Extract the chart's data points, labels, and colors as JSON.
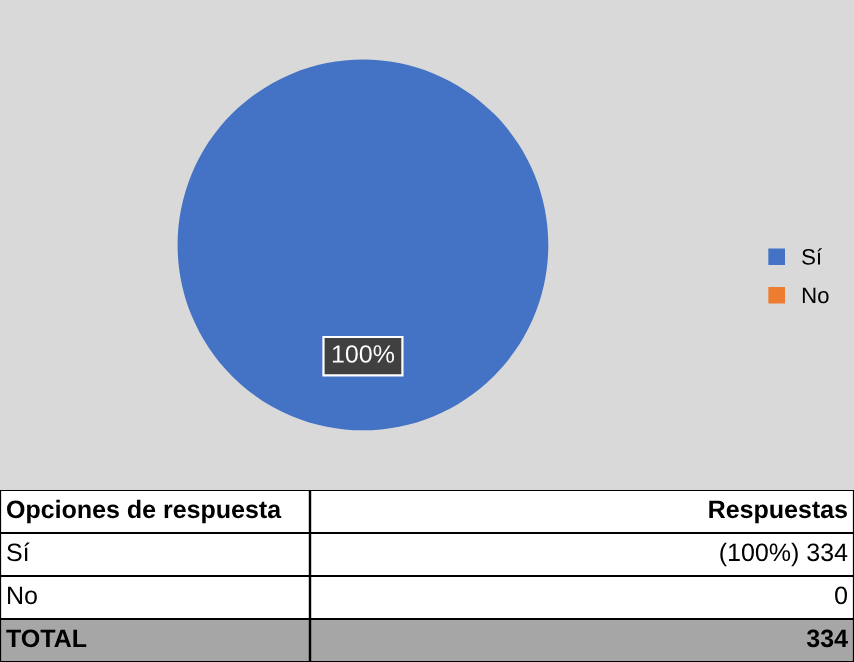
{
  "chart_data": {
    "type": "pie",
    "categories": [
      "Sí",
      "No"
    ],
    "values": [
      100,
      0
    ],
    "colors": [
      "#4472c4",
      "#ed7d31"
    ],
    "legend": "right",
    "data_labels": true,
    "value_labels": [
      "100%",
      null
    ],
    "annotations": [
      "Opciones de respuesta",
      "Respuestas",
      "Sí",
      "(100%) 334",
      "No",
      "0",
      "TOTAL",
      "334"
    ]
  }
}
